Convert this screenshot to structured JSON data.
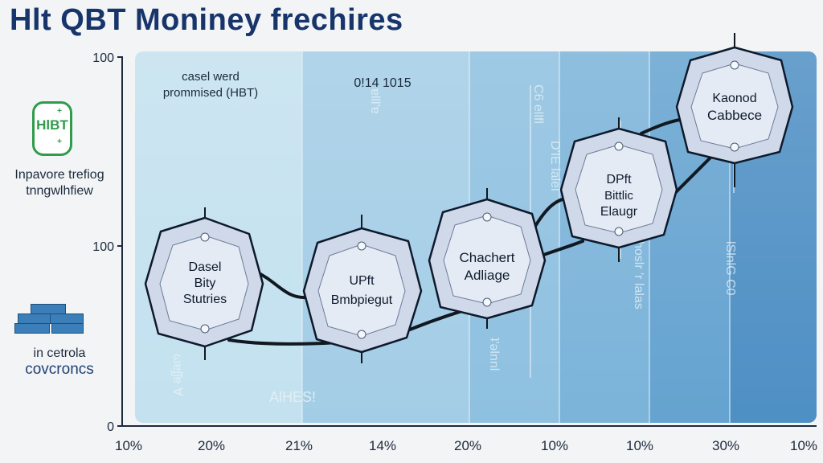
{
  "title": "Hlt QBT Moniney frechires",
  "legend": {
    "badge_text": "HlBT",
    "text1_line1": "Inpavore trefiog",
    "text1_line2": "tnngwlhfiew",
    "text2_line1": "in cetrola",
    "text2_line2": "covcroncs"
  },
  "y_axis": {
    "ticks": [
      "100",
      "100",
      "0"
    ]
  },
  "x_axis": {
    "ticks": [
      "10%",
      "20%",
      "21%",
      "14%",
      "20%",
      "10%",
      "10%",
      "30%",
      "10%"
    ]
  },
  "annotations": {
    "top_left_1": "casel werd",
    "top_left_2": "prommised (HBT)",
    "top_center": "0!14 1015",
    "bottom_center": "AlHES!"
  },
  "nodes": [
    {
      "lines": [
        "Dasel",
        "Bity",
        "Stutries"
      ]
    },
    {
      "lines": [
        "UPft",
        "Bmbpiegut"
      ]
    },
    {
      "lines": [
        "Chachert",
        "Adliage"
      ]
    },
    {
      "lines": [
        "DPft",
        "Bittlic",
        "Elaugr"
      ]
    },
    {
      "lines": [
        "Kaonod",
        "Cabbece"
      ]
    }
  ],
  "vertical_labels": [
    "C6 ellfl",
    "D'IE lalel",
    "hoslr 'r lalas",
    "lSlnlG C0"
  ],
  "colors": {
    "title": "#17356b",
    "bands": [
      "#c3e1ef",
      "#a3cde6",
      "#8ec0e0",
      "#7bb3d9",
      "#65a3d0",
      "#4e8fc4"
    ],
    "badge": "#2f9c4b"
  }
}
